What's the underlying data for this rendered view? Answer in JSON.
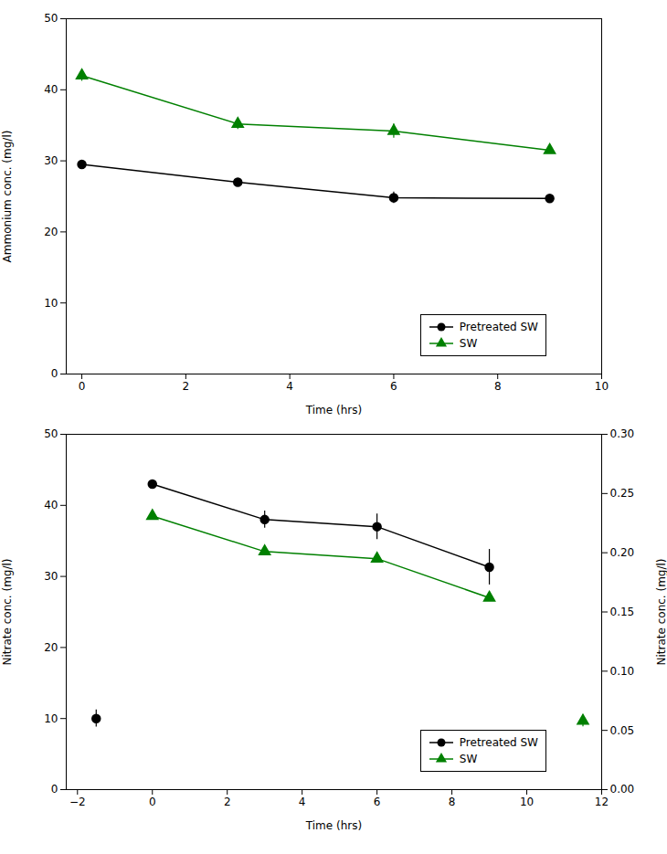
{
  "chart_data": [
    {
      "type": "line",
      "xlabel": "Time (hrs)",
      "ylabel": "Ammonium conc. (mg/l)",
      "xlim": [
        -0.3,
        10
      ],
      "xticks": [
        0,
        2,
        4,
        6,
        8,
        10
      ],
      "ylim": [
        0,
        50
      ],
      "yticks": [
        0,
        10,
        20,
        30,
        40,
        50
      ],
      "grid": false,
      "legend": "lower right",
      "line_style": "solid",
      "series": [
        {
          "name": "Pretreated SW",
          "color": "black",
          "marker": "circle",
          "x": [
            0,
            3,
            6,
            9
          ],
          "values": [
            29.5,
            27.0,
            24.8,
            24.7
          ],
          "yerr": [
            0.5,
            0.5,
            0.8,
            0.5
          ]
        },
        {
          "name": "SW",
          "color": "#008000",
          "marker": "triangle",
          "x": [
            0,
            3,
            6,
            9
          ],
          "values": [
            42.0,
            35.2,
            34.2,
            31.5
          ],
          "yerr": [
            0.8,
            0.8,
            1.0,
            0.5
          ]
        }
      ]
    },
    {
      "type": "line",
      "xlabel": "Time (hrs)",
      "ylabel": "Nitrate conc. (mg/l)",
      "y2label": "Nitrate conc. (mg/l)",
      "xlim": [
        -2.3,
        12
      ],
      "xticks": [
        -2,
        0,
        2,
        4,
        6,
        8,
        10,
        12
      ],
      "ylim": [
        0,
        50
      ],
      "yticks": [
        0,
        10,
        20,
        30,
        40,
        50
      ],
      "y2lim": [
        0.0,
        0.3
      ],
      "y2ticks": [
        {
          "value": 0,
          "label": "0.00"
        },
        0.05,
        {
          "value": 0.1,
          "label": "0.10"
        },
        0.15,
        {
          "value": 0.2,
          "label": "0.20"
        },
        0.25,
        {
          "value": 0.3,
          "label": "0.30"
        }
      ],
      "grid": false,
      "legend": "lower right",
      "line_style": "solid",
      "series": [
        {
          "name": "Pretreated SW",
          "color": "black",
          "marker": "circle",
          "x": [
            0,
            3,
            6,
            9
          ],
          "values": [
            43.0,
            38.0,
            37.0,
            31.3
          ],
          "yerr": [
            0.5,
            1.2,
            1.8,
            2.5
          ]
        },
        {
          "name": "SW",
          "color": "#008000",
          "marker": "triangle",
          "x": [
            0,
            3,
            6,
            9
          ],
          "values": [
            38.5,
            33.5,
            32.5,
            27.0
          ],
          "yerr": [
            0.5,
            0.5,
            0.5,
            0.5
          ]
        },
        {
          "name": "Pretreated SW",
          "color": "black",
          "marker": "circle",
          "type": "scatter",
          "x": [
            -1.5
          ],
          "values": [
            10.0
          ],
          "yerr": [
            1.2
          ]
        },
        {
          "name": "SW",
          "color": "#008000",
          "marker": "triangle",
          "type": "scatter",
          "axis": "y2",
          "x": [
            11.5
          ],
          "values": [
            0.058
          ],
          "yerr": [
            0.005
          ]
        }
      ]
    }
  ]
}
